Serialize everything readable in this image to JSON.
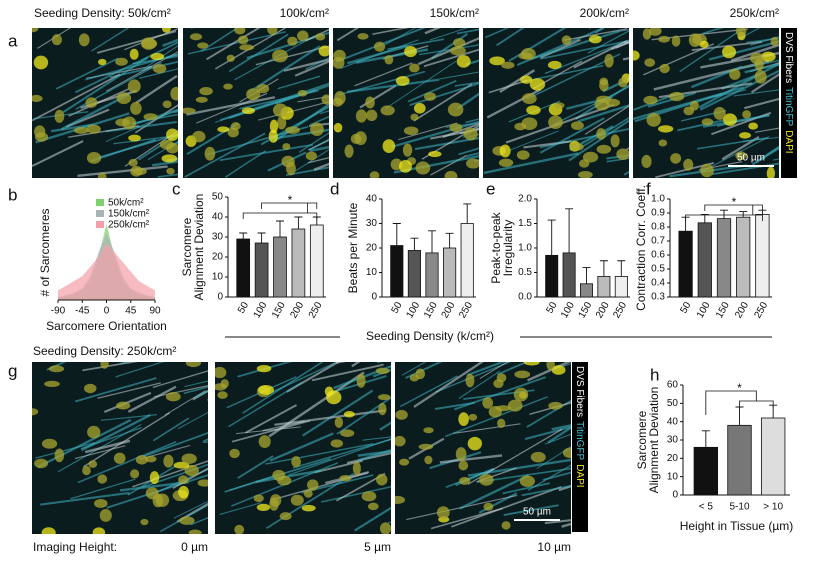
{
  "figure": {
    "panel_labels": [
      "a",
      "b",
      "c",
      "d",
      "e",
      "f",
      "g",
      "h"
    ],
    "a": {
      "heading": "Seeding Density: 50k/cm²",
      "densities": [
        "100k/cm²",
        "150k/cm²",
        "200k/cm²",
        "250k/cm²"
      ],
      "channels": [
        "DVS Fibers",
        "TitinGFP",
        "DAPI"
      ],
      "scale_bar": "50 µm"
    },
    "g": {
      "heading": "Seeding Density: 250k/cm²",
      "height_label": "Imaging Height:",
      "heights": [
        "0 µm",
        "5 µm",
        "10 µm"
      ],
      "channels": [
        "DVS Fibers",
        "TitinGFP",
        "DAPI"
      ],
      "scale_bar": "50 µm"
    },
    "shared_xlabel": "Seeding Density (k/cm²)"
  },
  "chart_data": [
    {
      "type": "area",
      "ylabel": "# of Sarcomeres",
      "xlabel": "Sarcomere Orientation",
      "x": [
        -90,
        -75,
        -60,
        -45,
        -30,
        -15,
        0,
        15,
        30,
        45,
        60,
        75,
        90
      ],
      "xlim": [
        -90,
        90
      ],
      "xticks": [
        -90,
        -45,
        0,
        45,
        90
      ],
      "ylim": [
        0,
        100
      ],
      "series": [
        {
          "name": "50k/cm²",
          "color": "#7fcf6f",
          "values": [
            2,
            4,
            6,
            10,
            20,
            45,
            80,
            45,
            20,
            10,
            6,
            4,
            2
          ]
        },
        {
          "name": "150k/cm²",
          "color": "#a9b4b8",
          "values": [
            3,
            5,
            8,
            12,
            25,
            50,
            70,
            50,
            25,
            12,
            8,
            5,
            3
          ]
        },
        {
          "name": "250k/cm²",
          "color": "#f4a0a8",
          "values": [
            10,
            15,
            20,
            25,
            35,
            45,
            60,
            50,
            40,
            30,
            20,
            15,
            10
          ]
        }
      ]
    },
    {
      "type": "bar",
      "ylabel": [
        "Sarcomere",
        "Alignment Deviation"
      ],
      "categories": [
        "50",
        "100",
        "150",
        "200",
        "250"
      ],
      "values": [
        29,
        27,
        30,
        34,
        36
      ],
      "errors": [
        3,
        5,
        8,
        6,
        4
      ],
      "colors": [
        "#111111",
        "#555555",
        "#888888",
        "#bbbbbb",
        "#eeeeee"
      ],
      "ylim": [
        0,
        50
      ],
      "yticks": [
        0,
        10,
        20,
        30,
        40,
        50
      ],
      "annotation": "*"
    },
    {
      "type": "bar",
      "ylabel": [
        "Beats per Minute"
      ],
      "categories": [
        "50",
        "100",
        "150",
        "200",
        "250"
      ],
      "values": [
        21,
        19,
        18,
        20,
        30
      ],
      "errors": [
        9,
        5,
        9,
        6,
        8
      ],
      "colors": [
        "#111111",
        "#555555",
        "#888888",
        "#bbbbbb",
        "#eeeeee"
      ],
      "ylim": [
        0,
        40
      ],
      "yticks": [
        0,
        10,
        20,
        30,
        40
      ]
    },
    {
      "type": "bar",
      "ylabel": [
        "Peak-to-peak",
        "Irregularity"
      ],
      "categories": [
        "50",
        "100",
        "150",
        "200",
        "250"
      ],
      "values": [
        0.85,
        0.9,
        0.27,
        0.42,
        0.42
      ],
      "errors": [
        0.72,
        0.9,
        0.33,
        0.32,
        0.32
      ],
      "colors": [
        "#111111",
        "#555555",
        "#888888",
        "#bbbbbb",
        "#eeeeee"
      ],
      "ylim": [
        0,
        2
      ],
      "yticks": [
        {
          "value": 0,
          "label": "0.0"
        },
        0.5,
        {
          "value": 1,
          "label": "1.0"
        },
        1.5,
        {
          "value": 2,
          "label": "2.0"
        }
      ]
    },
    {
      "type": "bar",
      "ylabel": [
        "Contraction Corr. Coeff."
      ],
      "categories": [
        "50",
        "100",
        "150",
        "200",
        "250"
      ],
      "values": [
        0.77,
        0.83,
        0.86,
        0.87,
        0.89
      ],
      "errors": [
        0.1,
        0.06,
        0.06,
        0.04,
        0.03
      ],
      "colors": [
        "#111111",
        "#555555",
        "#888888",
        "#bbbbbb",
        "#eeeeee"
      ],
      "ylim": [
        0.3,
        1
      ],
      "yticks": [
        0.3,
        0.4,
        0.5,
        0.6,
        0.7,
        0.8,
        0.9,
        {
          "value": 1,
          "label": "1.0"
        }
      ],
      "annotation": "*"
    },
    {
      "type": "bar",
      "ylabel": [
        "Sarcomere",
        "Alignment Deviation"
      ],
      "xlabel": "Height in Tissue (µm)",
      "categories": [
        "< 5",
        "5-10",
        "> 10"
      ],
      "values": [
        26,
        38,
        42
      ],
      "errors": [
        9,
        10,
        7
      ],
      "colors": [
        "#111111",
        "#777777",
        "#dddddd"
      ],
      "ylim": [
        0,
        60
      ],
      "yticks": [
        0,
        10,
        20,
        30,
        40,
        50,
        60
      ],
      "annotation": "*"
    }
  ]
}
